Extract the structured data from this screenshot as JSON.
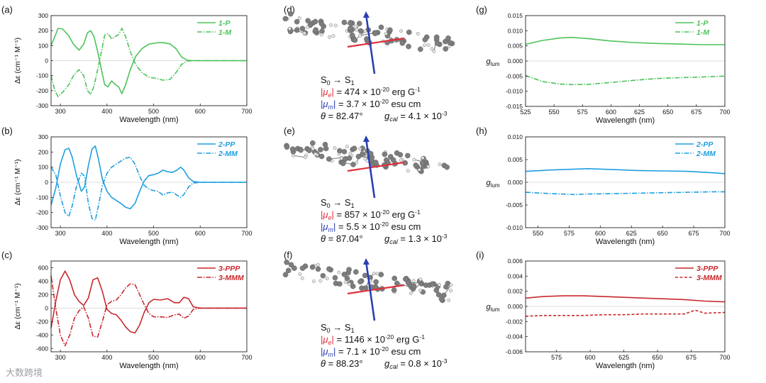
{
  "figure": {
    "watermark": "大数跨境",
    "common": {
      "wavelength_label": "Wavelength (nm)",
      "cd_ylabel": "Δε (cm⁻¹ M⁻¹)",
      "glum_ylabel": "g",
      "glum_sub": "lum"
    }
  },
  "chart_data": [
    {
      "id": "a",
      "panel_label": "(a)",
      "type": "line",
      "xlabel": "Wavelength (nm)",
      "ylabel": "Δε (cm⁻¹ M⁻¹)",
      "xlim": [
        280,
        700
      ],
      "ylim": [
        -300,
        300
      ],
      "xticks": [
        300,
        400,
        500,
        600,
        700
      ],
      "yticks": [
        -300,
        -200,
        -100,
        0,
        100,
        200,
        300
      ],
      "color": "#4cc35a",
      "series": [
        {
          "name": "1-P",
          "dash": "solid",
          "x": [
            280,
            288,
            295,
            305,
            318,
            328,
            340,
            350,
            358,
            365,
            372,
            380,
            388,
            395,
            402,
            410,
            418,
            425,
            432,
            440,
            450,
            462,
            475,
            490,
            505,
            520,
            535,
            548,
            560,
            572,
            585,
            600,
            650,
            700
          ],
          "y": [
            100,
            160,
            215,
            210,
            165,
            110,
            70,
            110,
            185,
            200,
            160,
            60,
            -60,
            -160,
            -175,
            -135,
            -160,
            -175,
            -220,
            -160,
            -60,
            30,
            80,
            110,
            118,
            120,
            112,
            80,
            25,
            3,
            0,
            0,
            0,
            0
          ]
        },
        {
          "name": "1-M",
          "dash": "dashdot",
          "x": [
            280,
            288,
            295,
            305,
            318,
            328,
            340,
            350,
            358,
            365,
            372,
            380,
            388,
            395,
            402,
            410,
            418,
            425,
            432,
            440,
            450,
            462,
            475,
            490,
            505,
            520,
            535,
            548,
            560,
            572,
            585,
            600,
            650,
            700
          ],
          "y": [
            -100,
            -200,
            -240,
            -210,
            -160,
            -100,
            -60,
            -100,
            -200,
            -225,
            -170,
            -60,
            60,
            170,
            180,
            145,
            160,
            175,
            215,
            160,
            60,
            -30,
            -80,
            -110,
            -118,
            -130,
            -125,
            -80,
            -25,
            -3,
            0,
            0,
            0,
            0
          ]
        }
      ],
      "legend": [
        "1-P",
        "1-M"
      ]
    },
    {
      "id": "b",
      "panel_label": "(b)",
      "type": "line",
      "xlabel": "Wavelength (nm)",
      "ylabel": "Δε (cm⁻¹ M⁻¹)",
      "xlim": [
        280,
        700
      ],
      "ylim": [
        -300,
        300
      ],
      "xticks": [
        300,
        400,
        500,
        600,
        700
      ],
      "yticks": [
        -300,
        -200,
        -100,
        0,
        100,
        200,
        300
      ],
      "color": "#1e9fe0",
      "series": [
        {
          "name": "2-PP",
          "dash": "solid",
          "x": [
            280,
            290,
            300,
            310,
            318,
            325,
            335,
            345,
            352,
            360,
            368,
            375,
            382,
            390,
            400,
            410,
            420,
            430,
            440,
            450,
            460,
            470,
            480,
            490,
            500,
            510,
            520,
            530,
            540,
            550,
            558,
            565,
            575,
            585,
            600,
            650,
            700
          ],
          "y": [
            -150,
            -40,
            120,
            215,
            225,
            170,
            40,
            -60,
            -30,
            110,
            220,
            240,
            150,
            20,
            -60,
            -100,
            -120,
            -140,
            -165,
            -175,
            -140,
            -60,
            10,
            45,
            50,
            60,
            80,
            70,
            65,
            80,
            100,
            80,
            30,
            5,
            0,
            0,
            0
          ]
        },
        {
          "name": "2-MM",
          "dash": "dashdot",
          "x": [
            280,
            290,
            300,
            310,
            318,
            325,
            335,
            345,
            352,
            360,
            368,
            375,
            382,
            390,
            400,
            410,
            420,
            430,
            440,
            450,
            460,
            470,
            480,
            490,
            500,
            510,
            520,
            530,
            540,
            550,
            558,
            565,
            575,
            585,
            600,
            650,
            700
          ],
          "y": [
            100,
            50,
            -90,
            -200,
            -225,
            -160,
            -20,
            60,
            40,
            -140,
            -240,
            -250,
            -150,
            -20,
            60,
            100,
            120,
            140,
            160,
            165,
            120,
            40,
            -20,
            -45,
            -55,
            -60,
            -85,
            -70,
            -65,
            -85,
            -100,
            -80,
            -30,
            -5,
            0,
            0,
            0
          ]
        }
      ],
      "legend": [
        "2-PP",
        "2-MM"
      ]
    },
    {
      "id": "c",
      "panel_label": "(c)",
      "type": "line",
      "xlabel": "Wavelength (nm)",
      "ylabel": "Δε (cm⁻¹ M⁻¹)",
      "xlim": [
        280,
        700
      ],
      "ylim": [
        -650,
        700
      ],
      "xticks": [
        300,
        400,
        500,
        600,
        700
      ],
      "yticks": [
        -600,
        -400,
        -200,
        0,
        200,
        400,
        600
      ],
      "color": "#c8282d",
      "series": [
        {
          "name": "3-PPP",
          "dash": "solid",
          "x": [
            280,
            290,
            300,
            310,
            320,
            330,
            340,
            350,
            360,
            370,
            380,
            390,
            400,
            410,
            420,
            430,
            440,
            450,
            460,
            470,
            480,
            490,
            500,
            515,
            530,
            545,
            555,
            565,
            575,
            585,
            600,
            650,
            700
          ],
          "y": [
            -300,
            100,
            420,
            550,
            420,
            200,
            100,
            40,
            150,
            420,
            450,
            250,
            -20,
            -80,
            -100,
            -180,
            -280,
            -350,
            -370,
            -250,
            -60,
            80,
            130,
            120,
            140,
            80,
            80,
            160,
            140,
            20,
            0,
            0,
            0
          ]
        },
        {
          "name": "3-MMM",
          "dash": "dashdot",
          "x": [
            280,
            290,
            300,
            310,
            320,
            330,
            340,
            350,
            360,
            370,
            380,
            390,
            400,
            410,
            420,
            430,
            440,
            450,
            460,
            470,
            480,
            490,
            500,
            515,
            530,
            545,
            555,
            565,
            575,
            585,
            600,
            650,
            700
          ],
          "y": [
            480,
            0,
            -400,
            -560,
            -400,
            -150,
            -40,
            20,
            -150,
            -420,
            -430,
            -200,
            50,
            100,
            120,
            200,
            300,
            360,
            350,
            200,
            50,
            -80,
            -130,
            -130,
            -140,
            -100,
            -90,
            -150,
            -120,
            -20,
            0,
            0,
            0
          ]
        }
      ],
      "legend": [
        "3-PPP",
        "3-MMM"
      ]
    },
    {
      "id": "g",
      "panel_label": "(g)",
      "type": "line",
      "xlabel": "Wavelength (nm)",
      "ylabel": "glum",
      "xlim": [
        525,
        700
      ],
      "ylim": [
        -0.015,
        0.015
      ],
      "xticks": [
        525,
        550,
        575,
        600,
        625,
        650,
        675,
        700
      ],
      "yticks": [
        -0.015,
        -0.01,
        -0.005,
        0.0,
        0.005,
        0.01,
        0.015
      ],
      "ytick_labels": [
        "-0.015",
        "-0.010",
        "-0.005",
        "0.000",
        "0.005",
        "0.010",
        "0.015"
      ],
      "color": "#4cc35a",
      "series": [
        {
          "name": "1-P",
          "dash": "solid",
          "x": [
            525,
            540,
            555,
            565,
            580,
            600,
            620,
            640,
            660,
            680,
            700
          ],
          "y": [
            0.0055,
            0.0068,
            0.0076,
            0.0078,
            0.0074,
            0.0066,
            0.0061,
            0.0058,
            0.0056,
            0.0054,
            0.0054
          ]
        },
        {
          "name": "1-M",
          "dash": "dashdot",
          "x": [
            525,
            540,
            555,
            565,
            580,
            600,
            620,
            640,
            660,
            680,
            700
          ],
          "y": [
            -0.0048,
            -0.0068,
            -0.0076,
            -0.0078,
            -0.0077,
            -0.0071,
            -0.0064,
            -0.0058,
            -0.0055,
            -0.0053,
            -0.005
          ]
        }
      ],
      "legend": [
        "1-P",
        "1-M"
      ]
    },
    {
      "id": "h",
      "panel_label": "(h)",
      "type": "line",
      "xlabel": "Wavelength (nm)",
      "ylabel": "glum",
      "xlim": [
        540,
        700
      ],
      "ylim": [
        -0.01,
        0.01
      ],
      "xticks": [
        550,
        575,
        600,
        625,
        650,
        675,
        700
      ],
      "yticks": [
        -0.01,
        -0.005,
        0.0,
        0.005,
        0.01
      ],
      "ytick_labels": [
        "-0.010",
        "-0.005",
        "0.000",
        "0.005",
        "0.010"
      ],
      "color": "#1e9fe0",
      "series": [
        {
          "name": "2-PP",
          "dash": "solid",
          "x": [
            540,
            560,
            580,
            590,
            610,
            630,
            650,
            670,
            690,
            700
          ],
          "y": [
            0.0024,
            0.0027,
            0.0029,
            0.003,
            0.0028,
            0.0026,
            0.0025,
            0.0024,
            0.0021,
            0.0019
          ]
        },
        {
          "name": "2-MM",
          "dash": "dashdot",
          "x": [
            540,
            560,
            580,
            590,
            610,
            630,
            650,
            670,
            690,
            700
          ],
          "y": [
            -0.0022,
            -0.0025,
            -0.0027,
            -0.0026,
            -0.0025,
            -0.0024,
            -0.0023,
            -0.0022,
            -0.0021,
            -0.0021
          ]
        }
      ],
      "legend": [
        "2-PP",
        "2-MM"
      ]
    },
    {
      "id": "i",
      "panel_label": "(i)",
      "type": "line",
      "xlabel": "Wavelength (nm)",
      "ylabel": "glum",
      "xlim": [
        552,
        700
      ],
      "ylim": [
        -0.006,
        0.006
      ],
      "xticks": [
        575,
        600,
        625,
        650,
        675,
        700
      ],
      "yticks": [
        -0.006,
        -0.004,
        -0.002,
        0.0,
        0.002,
        0.004,
        0.006
      ],
      "ytick_labels": [
        "-0.006",
        "-0.004",
        "-0.002",
        "0.000",
        "0.002",
        "0.004",
        "0.006"
      ],
      "color": "#c8282d",
      "series": [
        {
          "name": "3-PPP",
          "dash": "solid",
          "x": [
            552,
            565,
            580,
            595,
            610,
            625,
            640,
            655,
            670,
            685,
            700
          ],
          "y": [
            0.0011,
            0.0013,
            0.0014,
            0.0014,
            0.0013,
            0.0012,
            0.0011,
            0.001,
            0.0009,
            0.0007,
            0.0006
          ]
        },
        {
          "name": "3-MMM",
          "dash": "dashed",
          "x": [
            552,
            565,
            580,
            595,
            610,
            625,
            640,
            655,
            670,
            678,
            685,
            700
          ],
          "y": [
            -0.0013,
            -0.0012,
            -0.0012,
            -0.0012,
            -0.0011,
            -0.0011,
            -0.001,
            -0.001,
            -0.001,
            -0.0005,
            -0.0009,
            -0.0008
          ]
        }
      ],
      "legend": [
        "3-PPP",
        "3-MMM"
      ]
    }
  ],
  "molecules": [
    {
      "panel_label": "(d)",
      "transition_from": "S",
      "from_sub": "0",
      "transition_to": "S",
      "to_sub": "1",
      "mu_e_value": "474",
      "mu_e_unit": "erg G",
      "mu_m_value": "3.7",
      "mu_m_unit": "esu cm",
      "theta": "82.47°",
      "gcal_value": "4.1",
      "gcal_exp": "-3",
      "exp_sci": "-20",
      "exp_inv": "-1",
      "times": "×",
      "equals": "=",
      "mu_e_color": "#e0303a",
      "mu_m_color": "#2a3fb0"
    },
    {
      "panel_label": "(e)",
      "transition_from": "S",
      "from_sub": "0",
      "transition_to": "S",
      "to_sub": "1",
      "mu_e_value": "857",
      "mu_e_unit": "erg G",
      "mu_m_value": "5.5",
      "mu_m_unit": "esu cm",
      "theta": "87.04°",
      "gcal_value": "1.3",
      "gcal_exp": "-3",
      "exp_sci": "-20",
      "exp_inv": "-1",
      "times": "×",
      "equals": "=",
      "mu_e_color": "#e0303a",
      "mu_m_color": "#2a3fb0"
    },
    {
      "panel_label": "(f)",
      "transition_from": "S",
      "from_sub": "0",
      "transition_to": "S",
      "to_sub": "1",
      "mu_e_value": "1146",
      "mu_e_unit": "erg G",
      "mu_m_value": "7.1",
      "mu_m_unit": "esu cm",
      "theta": "88.23°",
      "gcal_value": "0.8",
      "gcal_exp": "-3",
      "exp_sci": "-20",
      "exp_inv": "-1",
      "times": "×",
      "equals": "=",
      "mu_e_color": "#e0303a",
      "mu_m_color": "#2a3fb0"
    }
  ]
}
